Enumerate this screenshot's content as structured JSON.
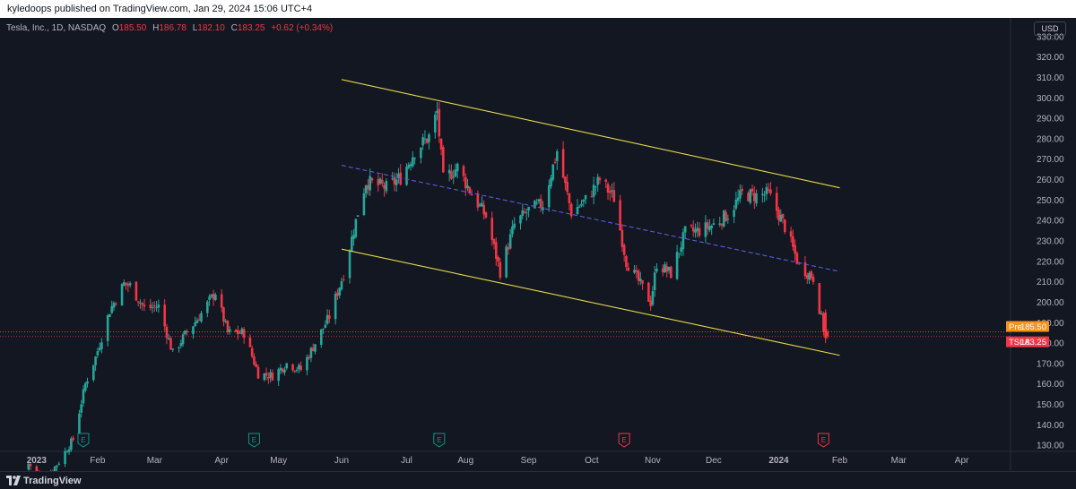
{
  "header": {
    "publisher_text": "kyledoops published on TradingView.com, Jan 29, 2024 15:06 UTC+4"
  },
  "legend": {
    "symbol": "Tesla, Inc., 1D, NASDAQ",
    "o_label": "O",
    "o_value": "185.50",
    "h_label": "H",
    "h_value": "186.78",
    "l_label": "L",
    "l_value": "182.10",
    "c_label": "C",
    "c_value": "183.25",
    "change": "+0.62 (+0.34%)"
  },
  "currency_button": "USD",
  "price_tags": {
    "pre": {
      "label": "Pre",
      "value": "185.50",
      "color": "#f7931a"
    },
    "last": {
      "label": "TSLA",
      "value": "183.25",
      "color": "#f23645"
    }
  },
  "footer": {
    "brand": "TradingView"
  },
  "colors": {
    "up": "#26a69a",
    "down": "#f23645",
    "channel": "#e5d84a",
    "midline": "#5b5bd6",
    "earnings_green": "#089981",
    "earnings_red": "#f23645"
  },
  "chart_data": {
    "type": "candlestick",
    "symbol": "TSLA",
    "y_axis": {
      "ticks": [
        "330.00",
        "320.00",
        "310.00",
        "300.00",
        "290.00",
        "280.00",
        "270.00",
        "260.00",
        "250.00",
        "240.00",
        "230.00",
        "220.00",
        "210.00",
        "200.00",
        "190.00",
        "180.00",
        "170.00",
        "160.00",
        "150.00",
        "140.00",
        "130.00"
      ],
      "range": [
        127,
        333
      ]
    },
    "x_axis": {
      "ticks": [
        {
          "label": "2023",
          "bold": true,
          "date": "2023-01-02"
        },
        {
          "label": "Feb",
          "date": "2023-02-01"
        },
        {
          "label": "Mar",
          "date": "2023-03-01"
        },
        {
          "label": "Apr",
          "date": "2023-04-03"
        },
        {
          "label": "May",
          "date": "2023-05-01"
        },
        {
          "label": "Jun",
          "date": "2023-06-01"
        },
        {
          "label": "Jul",
          "date": "2023-07-03"
        },
        {
          "label": "Aug",
          "date": "2023-08-01"
        },
        {
          "label": "Sep",
          "date": "2023-09-01"
        },
        {
          "label": "Oct",
          "date": "2023-10-02"
        },
        {
          "label": "Nov",
          "date": "2023-11-01"
        },
        {
          "label": "Dec",
          "date": "2023-12-01"
        },
        {
          "label": "2024",
          "bold": true,
          "date": "2024-01-02"
        },
        {
          "label": "Feb",
          "date": "2024-02-01"
        },
        {
          "label": "Mar",
          "date": "2024-03-01"
        },
        {
          "label": "Apr",
          "date": "2024-04-01"
        }
      ]
    },
    "closes": [
      {
        "date": "2022-12-29",
        "close": 121
      },
      {
        "date": "2023-01-06",
        "close": 113
      },
      {
        "date": "2023-01-13",
        "close": 122
      },
      {
        "date": "2023-01-20",
        "close": 133
      },
      {
        "date": "2023-01-26",
        "close": 160
      },
      {
        "date": "2023-01-31",
        "close": 173
      },
      {
        "date": "2023-02-07",
        "close": 196
      },
      {
        "date": "2023-02-14",
        "close": 209
      },
      {
        "date": "2023-02-17",
        "close": 208
      },
      {
        "date": "2023-02-24",
        "close": 197
      },
      {
        "date": "2023-03-03",
        "close": 198
      },
      {
        "date": "2023-03-10",
        "close": 175
      },
      {
        "date": "2023-03-16",
        "close": 184
      },
      {
        "date": "2023-03-23",
        "close": 193
      },
      {
        "date": "2023-03-31",
        "close": 205
      },
      {
        "date": "2023-04-06",
        "close": 185
      },
      {
        "date": "2023-04-14",
        "close": 185
      },
      {
        "date": "2023-04-21",
        "close": 165
      },
      {
        "date": "2023-04-28",
        "close": 164
      },
      {
        "date": "2023-05-05",
        "close": 170
      },
      {
        "date": "2023-05-12",
        "close": 167
      },
      {
        "date": "2023-05-19",
        "close": 180
      },
      {
        "date": "2023-05-26",
        "close": 193
      },
      {
        "date": "2023-06-02",
        "close": 214
      },
      {
        "date": "2023-06-09",
        "close": 244
      },
      {
        "date": "2023-06-13",
        "close": 259
      },
      {
        "date": "2023-06-23",
        "close": 256
      },
      {
        "date": "2023-06-30",
        "close": 261
      },
      {
        "date": "2023-07-07",
        "close": 274
      },
      {
        "date": "2023-07-14",
        "close": 281
      },
      {
        "date": "2023-07-18",
        "close": 293
      },
      {
        "date": "2023-07-21",
        "close": 260
      },
      {
        "date": "2023-07-28",
        "close": 266
      },
      {
        "date": "2023-08-04",
        "close": 253
      },
      {
        "date": "2023-08-11",
        "close": 242
      },
      {
        "date": "2023-08-18",
        "close": 215
      },
      {
        "date": "2023-08-25",
        "close": 238
      },
      {
        "date": "2023-09-01",
        "close": 245
      },
      {
        "date": "2023-09-08",
        "close": 248
      },
      {
        "date": "2023-09-15",
        "close": 274
      },
      {
        "date": "2023-09-22",
        "close": 244
      },
      {
        "date": "2023-09-29",
        "close": 250
      },
      {
        "date": "2023-10-06",
        "close": 260
      },
      {
        "date": "2023-10-13",
        "close": 251
      },
      {
        "date": "2023-10-19",
        "close": 220
      },
      {
        "date": "2023-10-27",
        "close": 207
      },
      {
        "date": "2023-10-31",
        "close": 200
      },
      {
        "date": "2023-11-03",
        "close": 219
      },
      {
        "date": "2023-11-10",
        "close": 214
      },
      {
        "date": "2023-11-17",
        "close": 234
      },
      {
        "date": "2023-11-24",
        "close": 235
      },
      {
        "date": "2023-12-01",
        "close": 238
      },
      {
        "date": "2023-12-08",
        "close": 243
      },
      {
        "date": "2023-12-15",
        "close": 253
      },
      {
        "date": "2023-12-22",
        "close": 252
      },
      {
        "date": "2023-12-28",
        "close": 253
      },
      {
        "date": "2024-01-05",
        "close": 237
      },
      {
        "date": "2024-01-12",
        "close": 218
      },
      {
        "date": "2024-01-19",
        "close": 212
      },
      {
        "date": "2024-01-25",
        "close": 182
      },
      {
        "date": "2024-01-26",
        "close": 183.25
      }
    ],
    "channel_lines": [
      {
        "name": "upper",
        "from": {
          "date": "2023-06-01",
          "price": 309
        },
        "to": {
          "date": "2024-02-01",
          "price": 256
        }
      },
      {
        "name": "lower",
        "from": {
          "date": "2023-06-01",
          "price": 226
        },
        "to": {
          "date": "2024-02-01",
          "price": 174
        }
      },
      {
        "name": "mid",
        "dashed": true,
        "from": {
          "date": "2023-06-01",
          "price": 267
        },
        "to": {
          "date": "2024-02-01",
          "price": 215
        }
      }
    ],
    "earnings_markers": [
      {
        "date": "2023-01-25",
        "kind": "E",
        "color": "green"
      },
      {
        "date": "2023-04-19",
        "kind": "E",
        "color": "green"
      },
      {
        "date": "2023-07-19",
        "kind": "E",
        "color": "green"
      },
      {
        "date": "2023-10-18",
        "kind": "E",
        "color": "red"
      },
      {
        "date": "2024-01-24",
        "kind": "E",
        "color": "red"
      }
    ],
    "horizontal_levels": [
      {
        "name": "pre",
        "price": 185.5,
        "dotted": true
      },
      {
        "name": "last",
        "price": 183.25,
        "dotted": true
      }
    ]
  }
}
